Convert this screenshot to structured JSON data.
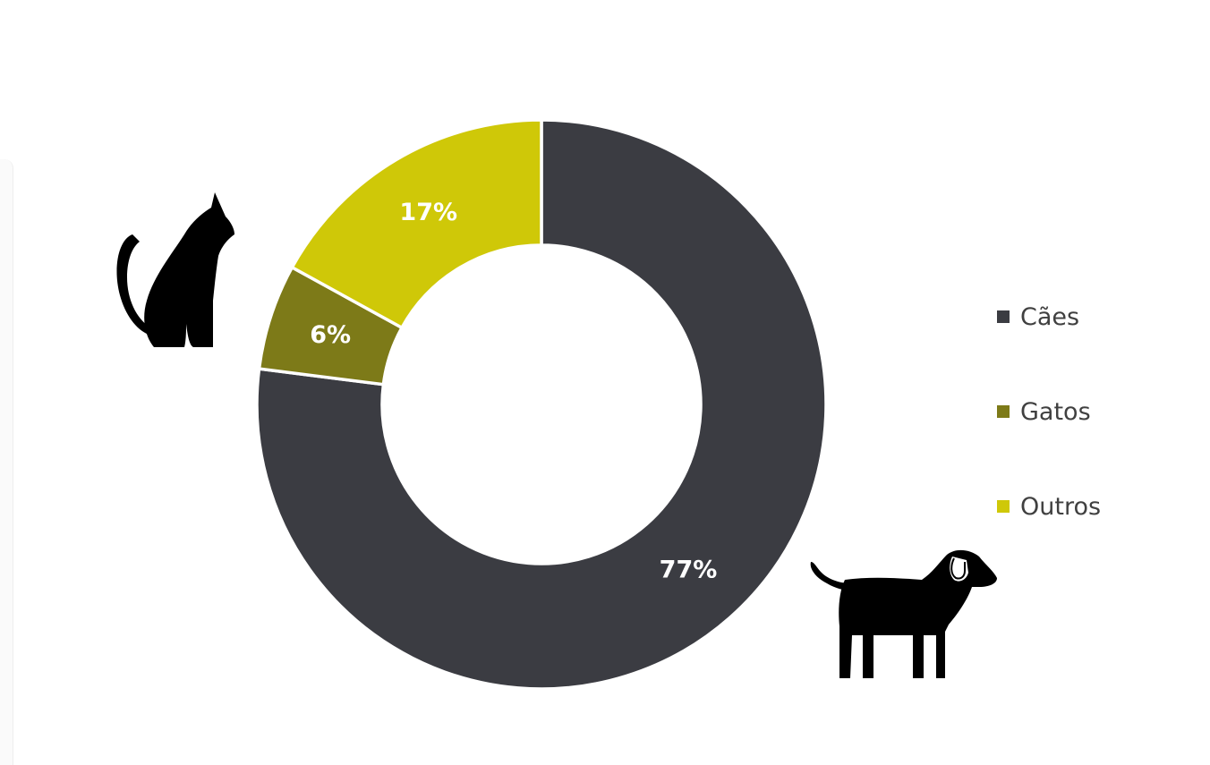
{
  "chart_data": {
    "type": "pie",
    "variant": "donut",
    "categories": [
      "Cães",
      "Gatos",
      "Outros"
    ],
    "values": [
      77,
      6,
      17
    ],
    "labels": [
      "77%",
      "6%",
      "17%"
    ],
    "colors": [
      "#3b3c42",
      "#7d7a18",
      "#cfc808"
    ],
    "legend_position": "right",
    "title": ""
  },
  "icons": {
    "cat": "cat-silhouette-icon",
    "dog": "dog-silhouette-icon"
  }
}
